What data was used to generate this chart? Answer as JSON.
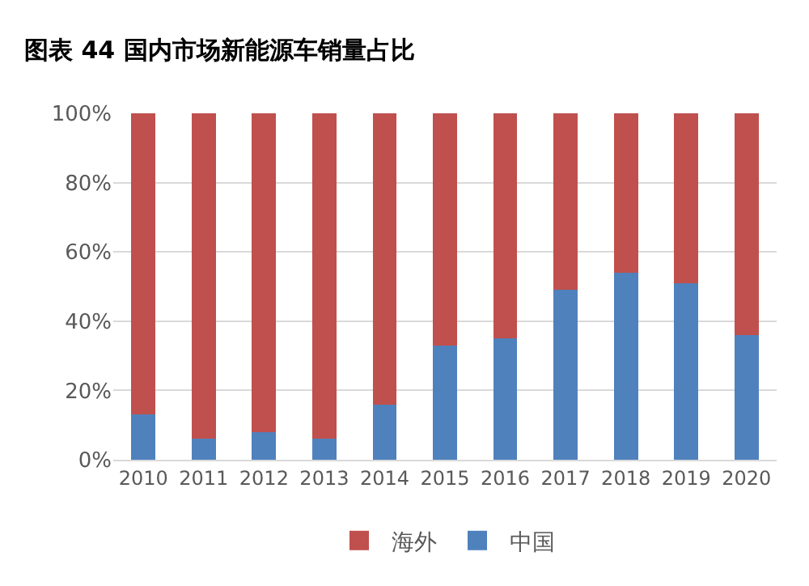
{
  "chart_data": {
    "type": "bar",
    "title": "图表 44 国内市场新能源车销量占比",
    "stacked": true,
    "categories": [
      "2010",
      "2011",
      "2012",
      "2013",
      "2014",
      "2015",
      "2016",
      "2017",
      "2018",
      "2019",
      "2020"
    ],
    "series": [
      {
        "name": "中国",
        "color": "#4f81bd",
        "values": [
          13,
          6,
          8,
          6,
          16,
          33,
          35,
          49,
          54,
          51,
          36
        ]
      },
      {
        "name": "海外",
        "color": "#c0504d",
        "values": [
          87,
          94,
          92,
          94,
          84,
          67,
          65,
          51,
          46,
          49,
          64
        ]
      }
    ],
    "ylim": [
      0,
      100
    ],
    "yticks": [
      {
        "value": 0,
        "label": "0%"
      },
      {
        "value": 20,
        "label": "20%"
      },
      {
        "value": 40,
        "label": "40%"
      },
      {
        "value": 60,
        "label": "60%"
      },
      {
        "value": 80,
        "label": "80%"
      },
      {
        "value": 100,
        "label": "100%"
      }
    ],
    "grid": "y",
    "legend": "bottom"
  }
}
